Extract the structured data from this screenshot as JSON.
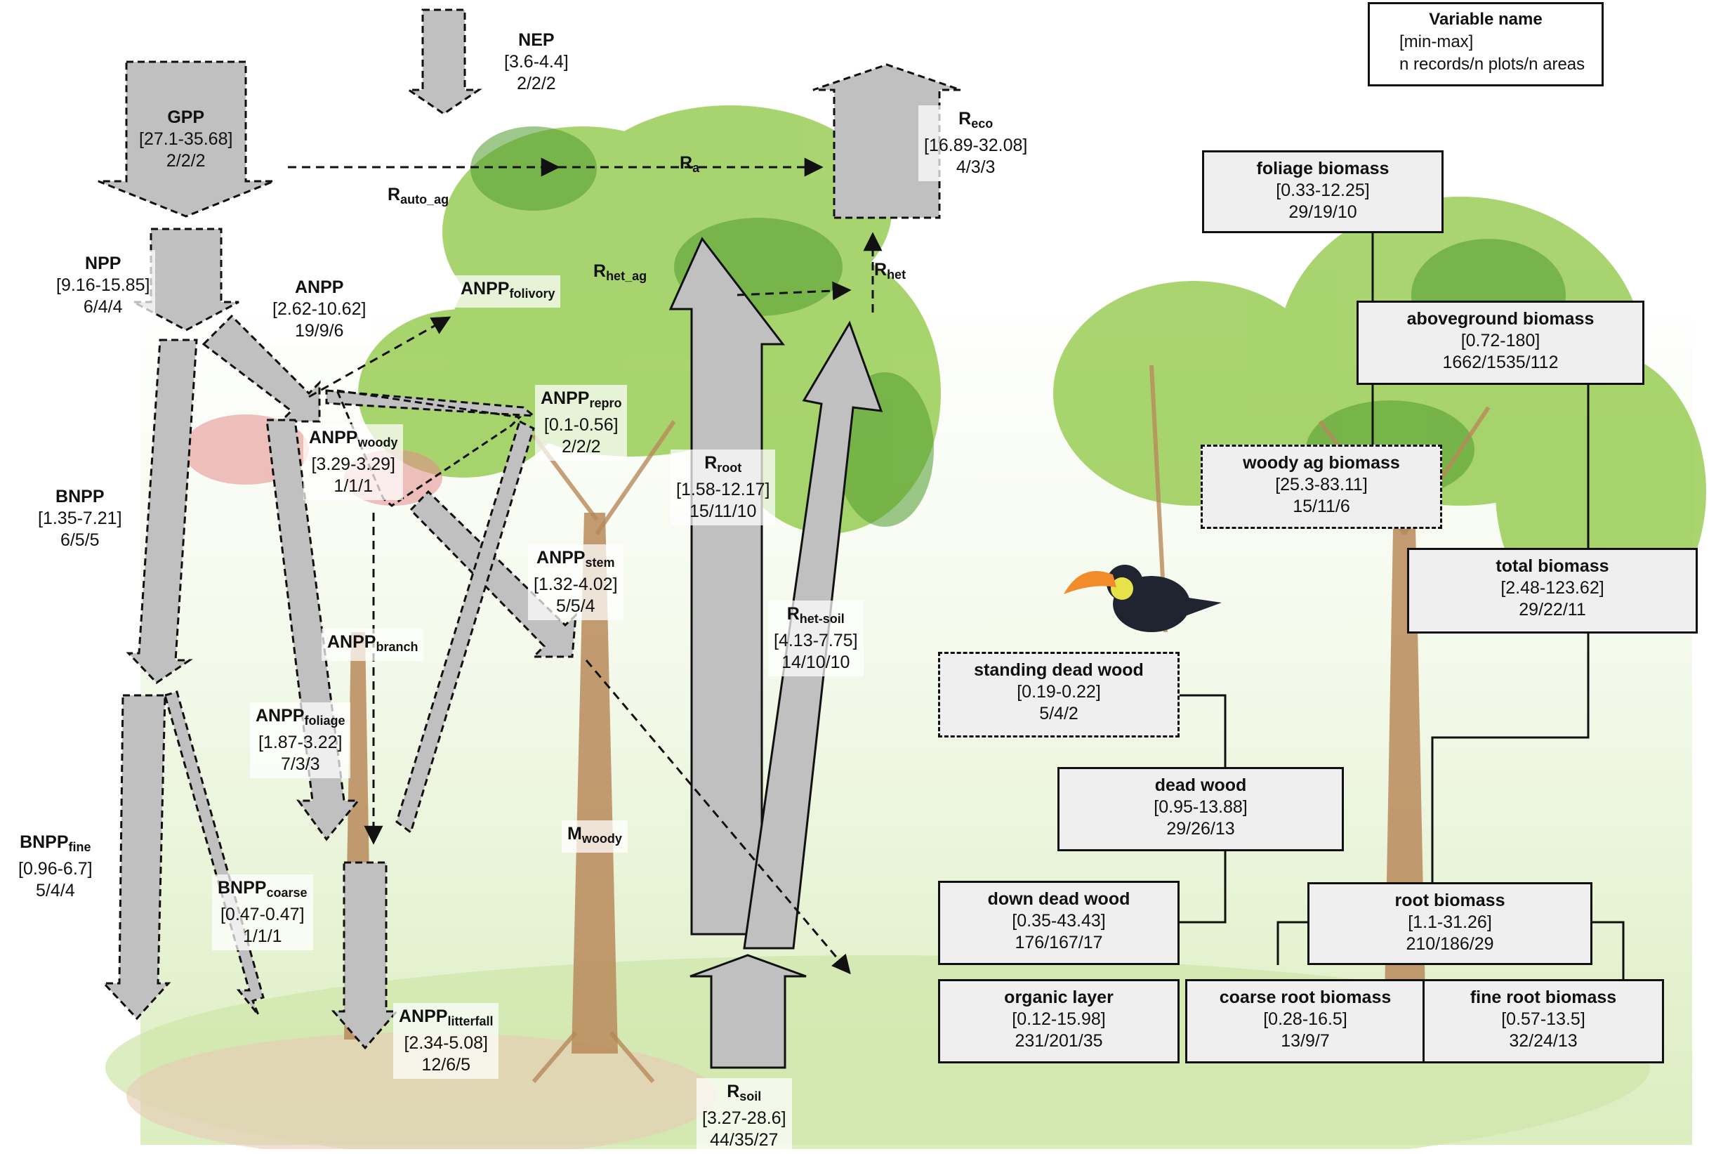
{
  "fluxes": {
    "nep": {
      "name": "NEP",
      "range": "[3.6-4.4]",
      "counts": "2/2/2"
    },
    "gpp": {
      "name": "GPP",
      "range": "[27.1-35.68]",
      "counts": "2/2/2"
    },
    "reco": {
      "name": "R",
      "sub": "eco",
      "range": "[16.89-32.08]",
      "counts": "4/3/3"
    },
    "ra": {
      "name": "R",
      "sub": "a"
    },
    "rauto_ag": {
      "name": "R",
      "sub": "auto_ag"
    },
    "npp": {
      "name": "NPP",
      "range": "[9.16-15.85]",
      "counts": "6/4/4"
    },
    "anpp": {
      "name": "ANPP",
      "range": "[2.62-10.62]",
      "counts": "19/9/6"
    },
    "anpp_folivory": {
      "name": "ANPP",
      "sub": "folivory"
    },
    "rhet_ag": {
      "name": "R",
      "sub": "het_ag"
    },
    "rhet": {
      "name": "R",
      "sub": "het"
    },
    "anpp_repro": {
      "name": "ANPP",
      "sub": "repro",
      "range": "[0.1-0.56]",
      "counts": "2/2/2"
    },
    "anpp_woody": {
      "name": "ANPP",
      "sub": "woody",
      "range": "[3.29-3.29]",
      "counts": "1/1/1"
    },
    "bnpp": {
      "name": "BNPP",
      "range": "[1.35-7.21]",
      "counts": "6/5/5"
    },
    "rroot": {
      "name": "R",
      "sub": "root",
      "range": "[1.58-12.17]",
      "counts": "15/11/10"
    },
    "anpp_stem": {
      "name": "ANPP",
      "sub": "stem",
      "range": "[1.32-4.02]",
      "counts": "5/5/4"
    },
    "rhet_soil": {
      "name": "R",
      "sub": "het-soil",
      "range": "[4.13-7.75]",
      "counts": "14/10/10"
    },
    "anpp_branch": {
      "name": "ANPP",
      "sub": "branch"
    },
    "anpp_foliage": {
      "name": "ANPP",
      "sub": "foliage",
      "range": "[1.87-3.22]",
      "counts": "7/3/3"
    },
    "bnpp_fine": {
      "name": "BNPP",
      "sub": "fine",
      "range": "[0.96-6.7]",
      "counts": "5/4/4"
    },
    "m_woody": {
      "name": "M",
      "sub": "woody"
    },
    "bnpp_coarse": {
      "name": "BNPP",
      "sub": "coarse",
      "range": "[0.47-0.47]",
      "counts": "1/1/1"
    },
    "anpp_litterfall": {
      "name": "ANPP",
      "sub": "litterfall",
      "range": "[2.34-5.08]",
      "counts": "12/6/5"
    },
    "rsoil": {
      "name": "R",
      "sub": "soil",
      "range": "[3.27-28.6]",
      "counts": "44/35/27"
    }
  },
  "stocks": {
    "foliage": {
      "name": "foliage biomass",
      "range": "[0.33-12.25]",
      "counts": "29/19/10"
    },
    "aboveground": {
      "name": "aboveground biomass",
      "range": "[0.72-180]",
      "counts": "1662/1535/112"
    },
    "woody_ag": {
      "name": "woody ag biomass",
      "range": "[25.3-83.11]",
      "counts": "15/11/6"
    },
    "total": {
      "name": "total biomass",
      "range": "[2.48-123.62]",
      "counts": "29/22/11"
    },
    "standing_dead": {
      "name": "standing dead wood",
      "range": "[0.19-0.22]",
      "counts": "5/4/2"
    },
    "dead_wood": {
      "name": "dead wood",
      "range": "[0.95-13.88]",
      "counts": "29/26/13"
    },
    "down_dead": {
      "name": "down dead wood",
      "range": "[0.35-43.43]",
      "counts": "176/167/17"
    },
    "root": {
      "name": "root biomass",
      "range": "[1.1-31.26]",
      "counts": "210/186/29"
    },
    "organic": {
      "name": "organic layer",
      "range": "[0.12-15.98]",
      "counts": "231/201/35"
    },
    "coarse_root": {
      "name": "coarse root biomass",
      "range": "[0.28-16.5]",
      "counts": "13/9/7"
    },
    "fine_root": {
      "name": "fine root biomass",
      "range": "[0.57-13.5]",
      "counts": "32/24/13"
    }
  },
  "legend": {
    "title": "Variable name",
    "line1": "[min-max]",
    "line2": "n records/n plots/n areas"
  },
  "colors": {
    "arrow_fill": "#c0c0c0",
    "box_fill": "#efefef",
    "foliage": "#8cc63f",
    "trunk": "#b8895a"
  }
}
